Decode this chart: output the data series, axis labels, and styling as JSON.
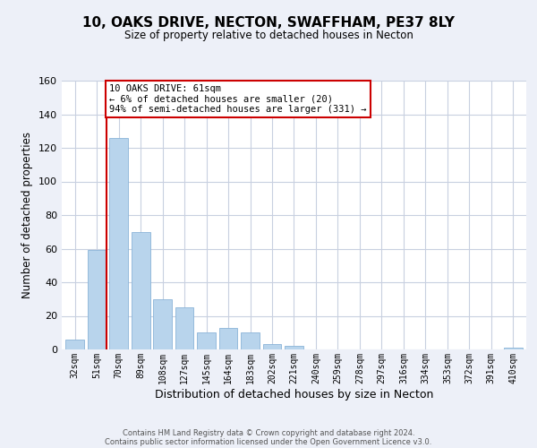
{
  "title": "10, OAKS DRIVE, NECTON, SWAFFHAM, PE37 8LY",
  "subtitle": "Size of property relative to detached houses in Necton",
  "xlabel": "Distribution of detached houses by size in Necton",
  "ylabel": "Number of detached properties",
  "bar_labels": [
    "32sqm",
    "51sqm",
    "70sqm",
    "89sqm",
    "108sqm",
    "127sqm",
    "145sqm",
    "164sqm",
    "183sqm",
    "202sqm",
    "221sqm",
    "240sqm",
    "259sqm",
    "278sqm",
    "297sqm",
    "316sqm",
    "334sqm",
    "353sqm",
    "372sqm",
    "391sqm",
    "410sqm"
  ],
  "bar_heights": [
    6,
    59,
    126,
    70,
    30,
    25,
    10,
    13,
    10,
    3,
    2,
    0,
    0,
    0,
    0,
    0,
    0,
    0,
    0,
    0,
    1
  ],
  "bar_color": "#b8d4ec",
  "bar_edge_color": "#8ab4d8",
  "vline_color": "#cc0000",
  "vline_x_index": 1,
  "ylim": [
    0,
    160
  ],
  "yticks": [
    0,
    20,
    40,
    60,
    80,
    100,
    120,
    140,
    160
  ],
  "annotation_line1": "10 OAKS DRIVE: 61sqm",
  "annotation_line2": "← 6% of detached houses are smaller (20)",
  "annotation_line3": "94% of semi-detached houses are larger (331) →",
  "annotation_box_color": "#ffffff",
  "annotation_box_edge": "#cc0000",
  "footer_line1": "Contains HM Land Registry data © Crown copyright and database right 2024.",
  "footer_line2": "Contains public sector information licensed under the Open Government Licence v3.0.",
  "background_color": "#edf0f8",
  "plot_bg_color": "#ffffff",
  "grid_color": "#c8d0e0"
}
